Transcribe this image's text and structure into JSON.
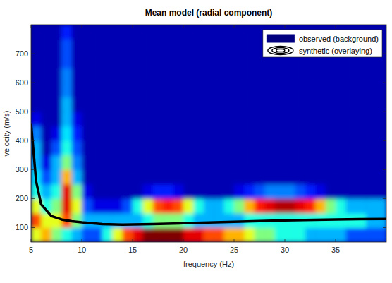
{
  "chart_data": {
    "type": "heatmap",
    "title": "Mean model (radial component)",
    "x_label": "frequency (Hz)",
    "y_label": "velocity (m/s)",
    "xlim": [
      5,
      40
    ],
    "ylim": [
      50,
      800
    ],
    "xticks": [
      5,
      10,
      15,
      20,
      25,
      30,
      35
    ],
    "yticks": [
      100,
      200,
      300,
      400,
      500,
      600,
      700
    ],
    "legend": "top-right",
    "heatmap": {
      "name": "observed (background)",
      "zlim": [
        0,
        1
      ],
      "x": [
        5.5,
        6.5,
        7.5,
        8.5,
        9.5,
        10.5,
        11.5,
        12.5,
        13.5,
        14.5,
        15.5,
        16.5,
        17.5,
        18.5,
        19.5,
        20.5,
        21.5,
        22.5,
        23.5,
        24.5,
        25.5,
        26.5,
        27.5,
        28.5,
        29.5,
        30.5,
        31.5,
        32.5,
        33.5,
        34.5,
        35.5,
        36.5,
        37.5,
        38.5,
        39.5
      ],
      "y": [
        75,
        125,
        175,
        225,
        275,
        325,
        375,
        425,
        475,
        525,
        575,
        625,
        675,
        725,
        775
      ],
      "z": [
        [
          0.6,
          0.7,
          0.5,
          0.4,
          0.3,
          0.2,
          0.2,
          0.4,
          0.6,
          0.8,
          0.9,
          1,
          1,
          1,
          1,
          0.9,
          0.9,
          0.8,
          0.8,
          0.7,
          0.7,
          0.6,
          0.5,
          0.5,
          0.4,
          0.4,
          0.4,
          0.3,
          0.3,
          0.3,
          0.3,
          0.2,
          0.2,
          0.2,
          0.2
        ],
        [
          0.8,
          0.6,
          0.6,
          0.8,
          0.5,
          0.3,
          0.3,
          0.3,
          0.3,
          0.3,
          0.3,
          0.4,
          0.5,
          0.5,
          0.5,
          0.4,
          0.3,
          0.3,
          0.3,
          0.3,
          0.3,
          0.4,
          0.4,
          0.4,
          0.4,
          0.4,
          0.4,
          0.4,
          0.4,
          0.4,
          0.4,
          0.4,
          0.4,
          0.3,
          0.3
        ],
        [
          0.6,
          0.4,
          0.5,
          0.9,
          0.6,
          0.2,
          0.1,
          0.1,
          0.1,
          0.2,
          0.4,
          0.6,
          0.8,
          0.85,
          0.8,
          0.6,
          0.4,
          0.3,
          0.3,
          0.4,
          0.5,
          0.7,
          0.85,
          0.9,
          0.95,
          0.95,
          0.9,
          0.85,
          0.7,
          0.5,
          0.4,
          0.3,
          0.3,
          0.3,
          0.3
        ],
        [
          0.4,
          0.3,
          0.4,
          0.9,
          0.5,
          0.1,
          0.05,
          0.05,
          0.05,
          0.05,
          0.05,
          0.1,
          0.15,
          0.15,
          0.1,
          0.05,
          0.05,
          0.05,
          0.05,
          0.05,
          0.1,
          0.15,
          0.2,
          0.25,
          0.25,
          0.25,
          0.2,
          0.15,
          0.1,
          0.05,
          0.05,
          0.05,
          0.05,
          0.05,
          0.05
        ],
        [
          0.35,
          0.2,
          0.3,
          0.7,
          0.3,
          0.05,
          0.05,
          0.05,
          0.05,
          0.05,
          0.05,
          0.05,
          0.05,
          0.05,
          0.05,
          0.05,
          0.05,
          0.05,
          0.05,
          0.05,
          0.05,
          0.05,
          0.05,
          0.05,
          0.05,
          0.05,
          0.05,
          0.05,
          0.05,
          0.05,
          0.05,
          0.05,
          0.05,
          0.05,
          0.05
        ],
        [
          0.3,
          0.1,
          0.3,
          0.5,
          0.25,
          0.05,
          0.05,
          0.05,
          0.05,
          0.05,
          0.05,
          0.05,
          0.05,
          0.05,
          0.05,
          0.05,
          0.05,
          0.05,
          0.05,
          0.05,
          0.05,
          0.05,
          0.05,
          0.05,
          0.05,
          0.05,
          0.05,
          0.05,
          0.05,
          0.05,
          0.05,
          0.05,
          0.05,
          0.05,
          0.05
        ],
        [
          0.3,
          0.05,
          0.2,
          0.4,
          0.2,
          0.05,
          0.05,
          0.05,
          0.05,
          0.05,
          0.05,
          0.05,
          0.05,
          0.05,
          0.05,
          0.05,
          0.05,
          0.05,
          0.05,
          0.05,
          0.05,
          0.05,
          0.05,
          0.05,
          0.05,
          0.05,
          0.05,
          0.05,
          0.05,
          0.05,
          0.05,
          0.05,
          0.05,
          0.05,
          0.05
        ],
        [
          0.25,
          0.05,
          0.1,
          0.35,
          0.15,
          0.05,
          0.05,
          0.05,
          0.05,
          0.05,
          0.05,
          0.05,
          0.05,
          0.05,
          0.05,
          0.05,
          0.05,
          0.05,
          0.05,
          0.05,
          0.05,
          0.05,
          0.05,
          0.05,
          0.05,
          0.05,
          0.05,
          0.05,
          0.05,
          0.05,
          0.05,
          0.05,
          0.05,
          0.05,
          0.05
        ],
        [
          0.1,
          0.05,
          0.05,
          0.3,
          0.1,
          0.05,
          0.05,
          0.05,
          0.05,
          0.05,
          0.05,
          0.05,
          0.05,
          0.05,
          0.05,
          0.05,
          0.05,
          0.05,
          0.05,
          0.05,
          0.05,
          0.05,
          0.05,
          0.05,
          0.05,
          0.05,
          0.05,
          0.05,
          0.05,
          0.05,
          0.05,
          0.05,
          0.05,
          0.05,
          0.05
        ],
        [
          0.05,
          0.05,
          0.05,
          0.3,
          0.05,
          0.05,
          0.05,
          0.05,
          0.05,
          0.05,
          0.05,
          0.05,
          0.05,
          0.05,
          0.05,
          0.05,
          0.05,
          0.05,
          0.05,
          0.05,
          0.05,
          0.05,
          0.05,
          0.05,
          0.05,
          0.05,
          0.05,
          0.05,
          0.05,
          0.05,
          0.05,
          0.05,
          0.05,
          0.05,
          0.05
        ],
        [
          0.05,
          0.05,
          0.05,
          0.25,
          0.05,
          0.05,
          0.05,
          0.05,
          0.05,
          0.05,
          0.05,
          0.05,
          0.05,
          0.05,
          0.05,
          0.05,
          0.05,
          0.05,
          0.05,
          0.05,
          0.05,
          0.05,
          0.05,
          0.05,
          0.05,
          0.05,
          0.05,
          0.05,
          0.05,
          0.05,
          0.05,
          0.05,
          0.05,
          0.05,
          0.05
        ],
        [
          0.05,
          0.05,
          0.05,
          0.25,
          0.05,
          0.05,
          0.05,
          0.05,
          0.05,
          0.05,
          0.05,
          0.05,
          0.05,
          0.05,
          0.05,
          0.05,
          0.05,
          0.05,
          0.05,
          0.05,
          0.05,
          0.05,
          0.05,
          0.05,
          0.05,
          0.05,
          0.05,
          0.05,
          0.05,
          0.05,
          0.05,
          0.05,
          0.05,
          0.05,
          0.05
        ],
        [
          0.05,
          0.05,
          0.05,
          0.2,
          0.05,
          0.05,
          0.05,
          0.05,
          0.05,
          0.05,
          0.05,
          0.05,
          0.05,
          0.05,
          0.05,
          0.05,
          0.05,
          0.05,
          0.05,
          0.05,
          0.05,
          0.05,
          0.05,
          0.05,
          0.05,
          0.05,
          0.05,
          0.05,
          0.05,
          0.05,
          0.05,
          0.05,
          0.05,
          0.05,
          0.05
        ],
        [
          0.05,
          0.05,
          0.05,
          0.2,
          0.05,
          0.05,
          0.05,
          0.05,
          0.05,
          0.05,
          0.05,
          0.05,
          0.05,
          0.05,
          0.05,
          0.05,
          0.05,
          0.05,
          0.05,
          0.05,
          0.05,
          0.05,
          0.05,
          0.05,
          0.05,
          0.05,
          0.05,
          0.05,
          0.05,
          0.05,
          0.05,
          0.05,
          0.05,
          0.05,
          0.05
        ],
        [
          0.05,
          0.05,
          0.05,
          0.15,
          0.05,
          0.05,
          0.05,
          0.05,
          0.05,
          0.05,
          0.05,
          0.05,
          0.05,
          0.05,
          0.05,
          0.05,
          0.05,
          0.05,
          0.05,
          0.05,
          0.05,
          0.05,
          0.05,
          0.05,
          0.05,
          0.05,
          0.05,
          0.05,
          0.05,
          0.05,
          0.05,
          0.05,
          0.05,
          0.05,
          0.05
        ]
      ]
    },
    "series": [
      {
        "name": "synthetic (overlaying)",
        "type": "line",
        "color": "#000000",
        "x": [
          5,
          5.5,
          6,
          7,
          8,
          9,
          10,
          12,
          14,
          17,
          20,
          25,
          30,
          35,
          40
        ],
        "values": [
          460,
          260,
          180,
          140,
          128,
          122,
          118,
          112,
          110,
          112,
          115,
          120,
          125,
          128,
          130
        ]
      }
    ]
  }
}
